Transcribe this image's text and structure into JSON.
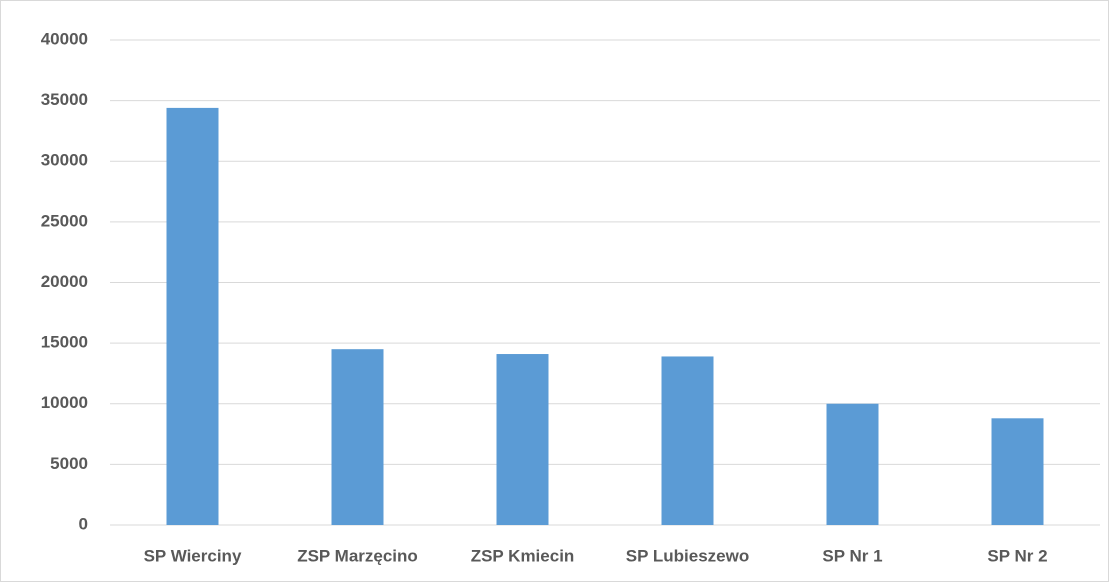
{
  "chart_data": {
    "type": "bar",
    "categories": [
      "SP Wierciny",
      "ZSP Marzęcino",
      "ZSP Kmiecin",
      "SP Lubieszewo",
      "SP Nr 1",
      "SP Nr 2"
    ],
    "values": [
      34400,
      14500,
      14100,
      13900,
      10000,
      8800
    ],
    "color": "#5b9bd5",
    "ylim": [
      0,
      40000
    ],
    "yticks": [
      0,
      5000,
      10000,
      15000,
      20000,
      25000,
      30000,
      35000,
      40000
    ],
    "grid": true
  }
}
